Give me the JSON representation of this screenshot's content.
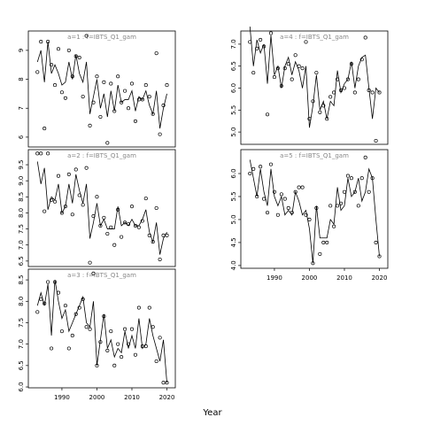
{
  "xlabel": "Year",
  "chart_data": [
    {
      "type": "line",
      "title": "a=1 : f=IBTS_Q1_gam",
      "x": [
        1983,
        1984,
        1985,
        1986,
        1987,
        1988,
        1989,
        1990,
        1991,
        1992,
        1993,
        1994,
        1995,
        1996,
        1997,
        1998,
        1999,
        2000,
        2001,
        2002,
        2003,
        2004,
        2005,
        2006,
        2007,
        2008,
        2009,
        2010,
        2011,
        2012,
        2013,
        2014,
        2015,
        2016,
        2017,
        2018,
        2019,
        2020
      ],
      "xlim": [
        1980.4,
        2022.4
      ],
      "ylim": [
        5.66,
        9.67
      ],
      "yticks": [
        6,
        7,
        8,
        9
      ],
      "series": [
        {
          "style": "points",
          "color": "#000000",
          "values": [
            8.25,
            9.3,
            6.3,
            9.3,
            8.5,
            7.8,
            9.05,
            7.55,
            7.35,
            9.0,
            8.1,
            8.8,
            8.75,
            7.4,
            9.5,
            6.4,
            7.2,
            8.1,
            6.7,
            7.9,
            5.8,
            7.85,
            6.9,
            8.1,
            7.2,
            7.6,
            7.0,
            7.85,
            6.55,
            7.3,
            7.3,
            7.8,
            7.4,
            6.8,
            8.9,
            6.1,
            7.1,
            7.8
          ]
        },
        {
          "style": "line",
          "color": "#000000",
          "values": [
            8.6,
            9.0,
            7.9,
            9.3,
            8.2,
            8.5,
            8.2,
            7.8,
            7.9,
            8.6,
            8.0,
            8.85,
            8.2,
            7.9,
            8.6,
            6.8,
            7.4,
            8.0,
            7.0,
            7.5,
            6.7,
            7.6,
            6.9,
            7.8,
            7.2,
            7.3,
            7.3,
            7.6,
            6.9,
            7.4,
            7.3,
            7.6,
            7.1,
            6.8,
            7.6,
            6.3,
            7.0,
            7.5
          ]
        }
      ]
    },
    {
      "type": "line",
      "title": "a=2 : f=IBTS_Q1_gam",
      "x": [
        1983,
        1984,
        1985,
        1986,
        1987,
        1988,
        1989,
        1990,
        1991,
        1992,
        1993,
        1994,
        1995,
        1996,
        1997,
        1998,
        1999,
        2000,
        2001,
        2002,
        2003,
        2004,
        2005,
        2006,
        2007,
        2008,
        2009,
        2010,
        2011,
        2012,
        2013,
        2014,
        2015,
        2016,
        2017,
        2018,
        2019,
        2020
      ],
      "xlim": [
        1980.4,
        2022.4
      ],
      "ylim": [
        6.33,
        9.97
      ],
      "yticks": [
        6.5,
        {
          "value": 7,
          "label": "7.0"
        },
        7.5,
        {
          "value": 8,
          "label": "8.0"
        },
        8.5,
        {
          "value": 9,
          "label": "9.0"
        },
        9.5
      ],
      "series": [
        {
          "style": "points",
          "color": "#000000",
          "values": [
            9.85,
            9.85,
            8.05,
            9.85,
            8.4,
            8.35,
            9.15,
            8.0,
            8.2,
            9.2,
            7.95,
            9.35,
            8.55,
            8.25,
            9.4,
            6.45,
            7.9,
            8.5,
            7.6,
            7.85,
            7.35,
            7.55,
            7.0,
            8.1,
            7.25,
            7.7,
            7.65,
            8.2,
            7.6,
            7.55,
            7.75,
            8.45,
            7.3,
            7.1,
            8.15,
            6.55,
            7.3,
            7.3
          ]
        },
        {
          "style": "line",
          "color": "#000000",
          "values": [
            9.6,
            8.9,
            9.4,
            8.1,
            8.5,
            8.4,
            8.9,
            8.0,
            8.2,
            8.9,
            8.3,
            9.2,
            8.7,
            8.3,
            8.9,
            7.2,
            7.7,
            8.3,
            7.6,
            7.8,
            7.5,
            7.5,
            7.5,
            8.2,
            7.6,
            7.7,
            7.6,
            7.8,
            7.6,
            7.6,
            7.8,
            8.1,
            7.4,
            7.1,
            7.7,
            6.7,
            7.2,
            7.4
          ]
        }
      ]
    },
    {
      "type": "line",
      "title": "a=3 : f=IBTS_Q1_gam",
      "x": [
        1983,
        1984,
        1985,
        1986,
        1987,
        1988,
        1989,
        1990,
        1991,
        1992,
        1993,
        1994,
        1995,
        1996,
        1997,
        1998,
        1999,
        2000,
        2001,
        2002,
        2003,
        2004,
        2005,
        2006,
        2007,
        2008,
        2009,
        2010,
        2011,
        2012,
        2013,
        2014,
        2015,
        2016,
        2017,
        2018,
        2019,
        2020
      ],
      "xlim": [
        1980.4,
        2022.4
      ],
      "xticks": [
        1990,
        2000,
        2010,
        2020
      ],
      "ylim": [
        5.98,
        8.75
      ],
      "yticks": [
        {
          "value": 6,
          "label": "6.0"
        },
        6.5,
        {
          "value": 7,
          "label": "7.0"
        },
        7.5,
        {
          "value": 8,
          "label": "8.0"
        },
        8.5
      ],
      "series": [
        {
          "style": "points",
          "color": "#000000",
          "values": [
            7.75,
            8.05,
            7.95,
            8.45,
            6.9,
            8.45,
            8.2,
            7.3,
            7.9,
            6.9,
            7.2,
            7.7,
            7.85,
            8.05,
            7.4,
            7.35,
            8.65,
            6.5,
            7.05,
            7.65,
            6.85,
            7.3,
            6.5,
            7.0,
            6.7,
            7.35,
            7.0,
            7.35,
            6.75,
            7.85,
            6.95,
            6.95,
            7.85,
            7.4,
            6.6,
            7.15,
            6.1,
            6.1
          ]
        },
        {
          "style": "line",
          "color": "#000000",
          "values": [
            7.9,
            8.2,
            7.9,
            8.4,
            7.2,
            8.5,
            8.0,
            7.6,
            7.8,
            7.3,
            7.5,
            7.7,
            7.9,
            8.1,
            7.5,
            7.4,
            8.0,
            6.5,
            7.1,
            7.7,
            6.9,
            7.1,
            6.7,
            6.9,
            6.8,
            7.3,
            6.9,
            7.2,
            6.9,
            7.6,
            6.9,
            7.0,
            7.6,
            7.2,
            6.9,
            6.6,
            7.1,
            6.1
          ]
        }
      ]
    },
    {
      "type": "line",
      "title": "a=4 : f=IBTS_Q1_gam",
      "x": [
        1983,
        1984,
        1985,
        1986,
        1987,
        1988,
        1989,
        1990,
        1991,
        1992,
        1993,
        1994,
        1995,
        1996,
        1997,
        1998,
        1999,
        2000,
        2001,
        2002,
        2003,
        2004,
        2005,
        2006,
        2007,
        2008,
        2009,
        2010,
        2011,
        2012,
        2013,
        2014,
        2015,
        2016,
        2017,
        2018,
        2019,
        2020
      ],
      "xlim": [
        1980.4,
        2022.4
      ],
      "ylim": [
        4.72,
        7.3
      ],
      "yticks": [
        {
          "value": 5,
          "label": "5.0"
        },
        5.5,
        {
          "value": 6,
          "label": "6.0"
        },
        6.5,
        {
          "value": 7,
          "label": "7.0"
        }
      ],
      "series": [
        {
          "style": "points",
          "color": "#000000",
          "values": [
            7.05,
            6.35,
            6.9,
            7.1,
            6.95,
            5.4,
            7.25,
            6.25,
            6.45,
            6.05,
            6.45,
            6.55,
            6.2,
            6.75,
            6.5,
            6.45,
            7.05,
            5.3,
            5.7,
            6.35,
            5.45,
            5.6,
            5.3,
            5.8,
            5.9,
            6.2,
            5.95,
            6.0,
            6.2,
            6.55,
            5.9,
            6.2,
            6.65,
            7.15,
            5.95,
            5.9,
            4.8,
            5.9
          ]
        },
        {
          "style": "line",
          "color": "#000000",
          "values": [
            7.4,
            6.5,
            7.1,
            6.8,
            7.0,
            6.1,
            7.2,
            6.3,
            6.5,
            6.0,
            6.5,
            6.7,
            6.3,
            6.6,
            6.4,
            6.0,
            6.5,
            5.1,
            5.6,
            6.3,
            5.5,
            5.7,
            5.3,
            5.7,
            5.6,
            6.4,
            5.9,
            6.1,
            6.2,
            6.6,
            6.0,
            6.5,
            6.7,
            6.75,
            6.0,
            5.3,
            6.0,
            5.9
          ]
        }
      ]
    },
    {
      "type": "line",
      "title": "a=5 : f=IBTS_Q1_gam",
      "x": [
        1983,
        1984,
        1985,
        1986,
        1987,
        1988,
        1989,
        1990,
        1991,
        1992,
        1993,
        1994,
        1995,
        1996,
        1997,
        1998,
        1999,
        2000,
        2001,
        2002,
        2003,
        2004,
        2005,
        2006,
        2007,
        2008,
        2009,
        2010,
        2011,
        2012,
        2013,
        2014,
        2015,
        2016,
        2017,
        2018,
        2019,
        2020
      ],
      "xlim": [
        1980.4,
        2022.4
      ],
      "xticks": [
        1990,
        2000,
        2010,
        2020
      ],
      "ylim": [
        3.94,
        6.52
      ],
      "yticks": [
        {
          "value": 4,
          "label": "4.0"
        },
        4.5,
        {
          "value": 5,
          "label": "5.0"
        },
        5.5,
        {
          "value": 6,
          "label": "6.0"
        }
      ],
      "series": [
        {
          "style": "points",
          "color": "#000000",
          "values": [
            6.0,
            6.1,
            5.5,
            6.15,
            5.45,
            5.15,
            6.2,
            5.6,
            5.1,
            5.55,
            5.45,
            5.25,
            5.15,
            5.6,
            5.7,
            5.7,
            5.1,
            5.0,
            4.05,
            5.25,
            4.25,
            4.5,
            4.5,
            5.3,
            4.85,
            5.3,
            5.35,
            5.6,
            5.95,
            5.9,
            5.6,
            5.3,
            5.9,
            6.35,
            5.6,
            5.9,
            4.5,
            4.2
          ]
        },
        {
          "style": "line",
          "color": "#000000",
          "values": [
            6.3,
            5.9,
            5.5,
            6.1,
            5.6,
            5.3,
            6.1,
            5.5,
            5.3,
            5.5,
            5.1,
            5.2,
            5.1,
            5.6,
            5.4,
            5.1,
            5.2,
            4.8,
            4.05,
            5.3,
            4.6,
            4.6,
            4.6,
            5.0,
            4.9,
            5.7,
            5.2,
            5.3,
            5.9,
            5.5,
            5.6,
            5.9,
            5.4,
            5.6,
            6.1,
            5.9,
            5.0,
            4.2
          ]
        }
      ]
    }
  ]
}
